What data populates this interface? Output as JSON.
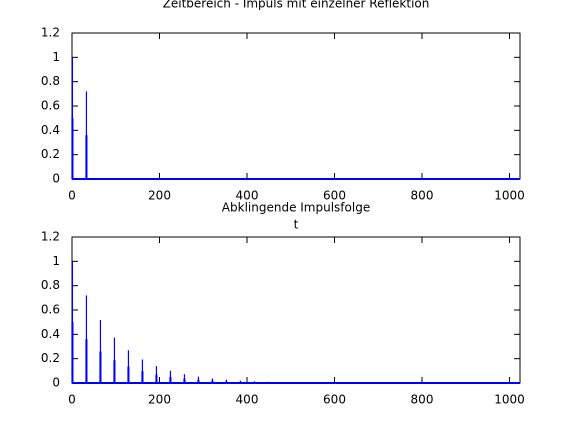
{
  "chart_data": [
    {
      "type": "stem",
      "title": "Zeitbereich - Impuls mit einzelner Reflektion",
      "xlabel": "t",
      "color": "#0000ff",
      "x": [
        0,
        1,
        2,
        32,
        33,
        34
      ],
      "values": [
        0.5,
        1,
        0.5,
        0.36,
        0.72,
        0.36
      ],
      "xlim": [
        0,
        1024
      ],
      "ylim": [
        0,
        1.2
      ],
      "xticks": [
        0,
        200,
        400,
        600,
        800,
        1000
      ],
      "yticks": [
        0,
        0.2,
        0.4,
        0.6,
        0.8,
        1,
        1.2
      ]
    },
    {
      "type": "stem",
      "title": "Abklingende Impulsfolge",
      "color": "#0000ff",
      "x": [
        0,
        1,
        2,
        32,
        33,
        34,
        64,
        65,
        66,
        96,
        97,
        98,
        128,
        129,
        130,
        160,
        161,
        162,
        192,
        193,
        194,
        224,
        225,
        226,
        256,
        257,
        258,
        288,
        289,
        290,
        320,
        321,
        322,
        352,
        353,
        354,
        384,
        385,
        386,
        416,
        417,
        418,
        448,
        449,
        450
      ],
      "values": [
        0.5,
        1,
        0.5,
        0.36,
        0.72,
        0.36,
        0.259,
        0.518,
        0.259,
        0.187,
        0.373,
        0.187,
        0.134,
        0.269,
        0.134,
        0.097,
        0.193,
        0.097,
        0.07,
        0.139,
        0.07,
        0.05,
        0.1,
        0.05,
        0.036,
        0.072,
        0.036,
        0.026,
        0.052,
        0.026,
        0.019,
        0.037,
        0.019,
        0.013,
        0.027,
        0.013,
        0.01,
        0.019,
        0.01,
        0.007,
        0.014,
        0.007,
        0.005,
        0.01,
        0.005
      ],
      "xlim": [
        0,
        1024
      ],
      "ylim": [
        0,
        1.2
      ],
      "xticks": [
        0,
        200,
        400,
        600,
        800,
        1000
      ],
      "yticks": [
        0,
        0.2,
        0.4,
        0.6,
        0.8,
        1,
        1.2
      ]
    }
  ]
}
